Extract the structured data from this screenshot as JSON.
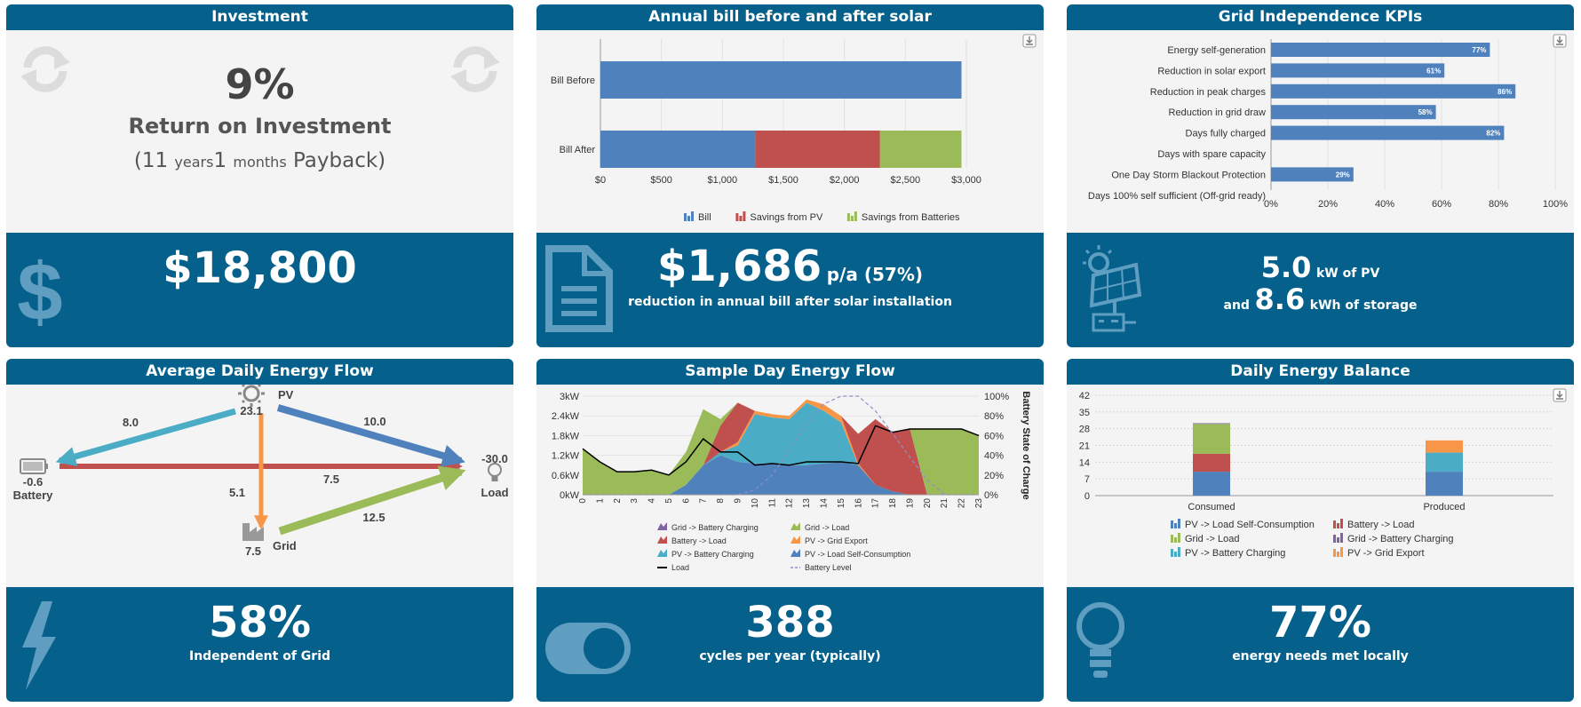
{
  "investment": {
    "title": "Investment",
    "roi_value": "9%",
    "roi_label": "Return on Investment",
    "payback_open": "(",
    "payback_years": "11",
    "years_unit": "years",
    "payback_months": "1",
    "months_unit": "months",
    "payback_label": "Payback)",
    "total": "$18,800",
    "icons": [
      "refresh-icon",
      "dollar-icon"
    ]
  },
  "annual_bill": {
    "title": "Annual bill before and after solar",
    "amount": "$1,686",
    "unit": "p/a (57%)",
    "caption": "reduction in annual bill after solar installation",
    "chart_data": {
      "type": "bar",
      "orientation": "horizontal",
      "stacked": true,
      "categories": [
        "Bill Before",
        "Bill After"
      ],
      "series": [
        {
          "name": "Bill",
          "color": "#4f81bd",
          "values": [
            2960,
            1270
          ]
        },
        {
          "name": "Savings from PV",
          "color": "#c0504d",
          "values": [
            0,
            1020
          ]
        },
        {
          "name": "Savings from Batteries",
          "color": "#9bbb59",
          "values": [
            0,
            670
          ]
        }
      ],
      "xticks": [
        "$0",
        "$500",
        "$1,000",
        "$1,500",
        "$2,000",
        "$2,500",
        "$3,000"
      ],
      "xlim": [
        0,
        3000
      ],
      "legend": "bottom"
    }
  },
  "kpis": {
    "title": "Grid Independence KPIs",
    "pv_value": "5.0",
    "pv_unit": "kW of PV",
    "and_label": "and",
    "storage_value": "8.6",
    "storage_unit": "kWh of storage",
    "chart_data": {
      "type": "bar",
      "orientation": "horizontal",
      "categories": [
        "Energy self-generation",
        "Reduction in solar export",
        "Reduction in peak charges",
        "Reduction in grid draw",
        "Days fully charged",
        "Days with spare capacity",
        "One Day Storm Blackout Protection",
        "Days 100% self sufficient (Off-grid ready)"
      ],
      "values": [
        77,
        61,
        86,
        58,
        82,
        0,
        29,
        0
      ],
      "labels": [
        "77%",
        "61%",
        "86%",
        "58%",
        "82%",
        "",
        "29%",
        ""
      ],
      "color": "#4f81bd",
      "xticks": [
        "0%",
        "20%",
        "40%",
        "60%",
        "80%",
        "100%"
      ],
      "xlim": [
        0,
        100
      ]
    }
  },
  "avg_flow": {
    "title": "Average Daily Energy Flow",
    "pv_label": "PV",
    "pv_value": "23.1",
    "battery_label": "Battery",
    "battery_value": "-0.6",
    "load_label": "Load",
    "load_value": "-30.0",
    "grid_label": "Grid",
    "grid_value": "7.5",
    "flow_pv_battery": "8.0",
    "flow_pv_load": "10.0",
    "flow_battery_load": "7.5",
    "flow_pv_grid": "5.1",
    "flow_grid_load": "12.5",
    "percent": "58%",
    "caption": "Independent of Grid",
    "colors": {
      "pv_battery": "#4bacc6",
      "pv_load": "#4f81bd",
      "battery_load": "#c0504d",
      "pv_grid": "#f79646",
      "grid_load": "#9bbb59"
    }
  },
  "sample_day": {
    "title": "Sample Day Energy Flow",
    "cycles": "388",
    "caption": "cycles per year (typically)",
    "chart_data": {
      "type": "area",
      "x": [
        0,
        1,
        2,
        3,
        4,
        5,
        6,
        7,
        8,
        9,
        10,
        11,
        12,
        13,
        14,
        15,
        16,
        17,
        18,
        19,
        20,
        21,
        22,
        23
      ],
      "yticks_left": [
        "0kW",
        "0.6kW",
        "1.2kW",
        "1.8kW",
        "2.4kW",
        "3kW"
      ],
      "ylim_left": [
        0,
        3
      ],
      "yticks_right": [
        "0%",
        "20%",
        "40%",
        "60%",
        "80%",
        "100%"
      ],
      "ylabel_right": "Battery State of Charge",
      "series": [
        {
          "name": "Grid -> Battery Charging",
          "color": "#8064a2",
          "values": [
            0,
            0,
            0,
            0,
            0,
            0,
            0,
            0,
            0,
            0,
            0,
            0,
            0,
            0,
            0,
            0,
            0,
            0,
            0,
            0,
            0,
            0,
            0,
            0
          ]
        },
        {
          "name": "Grid -> Load",
          "color": "#9bbb59",
          "values": [
            1.4,
            1.0,
            0.7,
            0.7,
            0.75,
            0.6,
            1.0,
            1.7,
            0.2,
            0,
            0,
            0,
            0,
            0,
            0,
            0,
            0,
            0,
            0,
            0,
            2.0,
            2.0,
            2.0,
            1.8
          ]
        },
        {
          "name": "Battery -> Load",
          "color": "#c0504d",
          "values": [
            0,
            0,
            0,
            0,
            0,
            0,
            0,
            0,
            0.8,
            1.2,
            0,
            0,
            0,
            0,
            0,
            0,
            0.9,
            2.0,
            1.8,
            2.0,
            0,
            0,
            0,
            0
          ]
        },
        {
          "name": "PV -> Grid Export",
          "color": "#f79646",
          "values": [
            0,
            0,
            0,
            0,
            0,
            0,
            0,
            0,
            0,
            0.1,
            0.1,
            0.1,
            0.1,
            0.1,
            0.2,
            0.2,
            0.05,
            0,
            0,
            0,
            0,
            0,
            0,
            0
          ]
        },
        {
          "name": "PV -> Battery Charging",
          "color": "#4bacc6",
          "values": [
            0,
            0,
            0,
            0,
            0,
            0,
            0,
            0,
            0.1,
            0.5,
            1.5,
            1.4,
            1.4,
            1.9,
            1.6,
            1.2,
            0,
            0,
            0,
            0,
            0,
            0,
            0,
            0
          ]
        },
        {
          "name": "PV -> Load Self-Consumption",
          "color": "#4f81bd",
          "values": [
            0,
            0,
            0,
            0,
            0,
            0,
            0.3,
            0.9,
            1.2,
            1.0,
            0.95,
            0.95,
            0.9,
            0.9,
            0.95,
            1.0,
            0.9,
            0.3,
            0.1,
            0,
            0,
            0,
            0,
            0
          ]
        },
        {
          "name": "Load",
          "color": "#000000",
          "values": [
            1.4,
            1.0,
            0.7,
            0.7,
            0.75,
            0.6,
            1.0,
            1.7,
            1.3,
            1.3,
            0.9,
            0.95,
            0.9,
            1.0,
            1.0,
            1.0,
            0.95,
            2.1,
            1.9,
            2.0,
            2.0,
            2.0,
            2.0,
            1.8
          ]
        },
        {
          "name": "Battery Level",
          "color": "#8e8ece",
          "values": [
            0,
            0,
            0,
            0,
            0,
            0,
            0,
            0,
            0,
            0,
            5,
            20,
            45,
            72,
            92,
            100,
            100,
            85,
            62,
            38,
            15,
            0,
            0,
            0
          ]
        }
      ],
      "legend": "bottom"
    }
  },
  "balance": {
    "title": "Daily Energy Balance",
    "percent": "77%",
    "caption": "energy needs met locally",
    "chart_data": {
      "type": "bar",
      "stacked": true,
      "categories": [
        "Consumed",
        "Produced"
      ],
      "yticks": [
        "0",
        "7",
        "14",
        "21",
        "28",
        "35",
        "42"
      ],
      "ylim": [
        0,
        42
      ],
      "series": [
        {
          "name": "PV -> Load Self-Consumption",
          "color": "#4f81bd",
          "values": [
            10,
            10
          ]
        },
        {
          "name": "Battery -> Load",
          "color": "#c0504d",
          "values": [
            7.5,
            0
          ]
        },
        {
          "name": "Grid -> Load",
          "color": "#9bbb59",
          "values": [
            12.5,
            0
          ]
        },
        {
          "name": "Grid -> Battery Charging",
          "color": "#8064a2",
          "values": [
            0.3,
            0
          ]
        },
        {
          "name": "PV -> Battery Charging",
          "color": "#4bacc6",
          "values": [
            0,
            8
          ]
        },
        {
          "name": "PV -> Grid Export",
          "color": "#f79646",
          "values": [
            0,
            5.1
          ]
        }
      ],
      "legend": "bottom"
    }
  }
}
